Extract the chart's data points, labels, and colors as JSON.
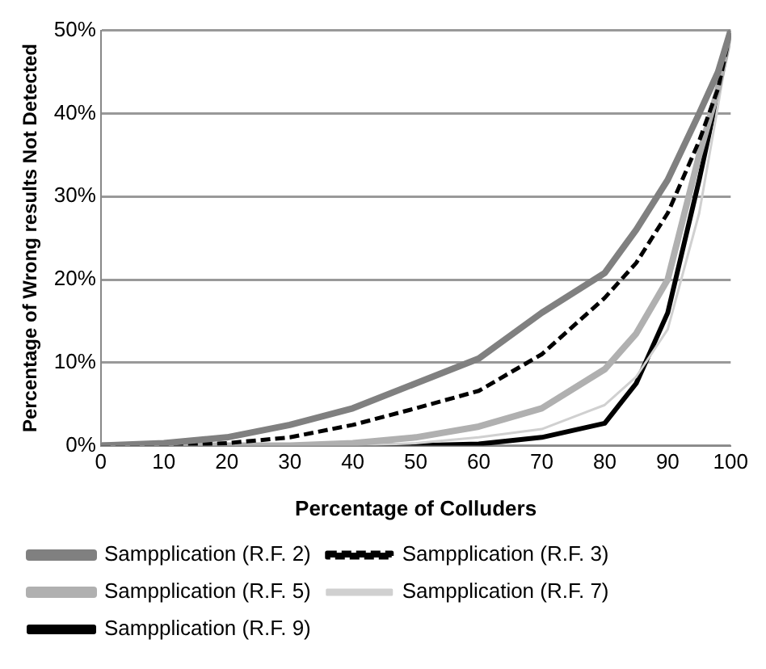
{
  "chart_data": {
    "type": "line",
    "xlabel": "Percentage of Colluders",
    "ylabel": "Percentage of Wrong results Not Detected",
    "x": [
      0,
      10,
      20,
      30,
      40,
      50,
      60,
      70,
      80,
      85,
      90,
      95,
      98,
      100
    ],
    "xlim": [
      0,
      100
    ],
    "xticks": [
      0,
      10,
      20,
      30,
      40,
      50,
      60,
      70,
      80,
      90,
      100
    ],
    "ylim": [
      0,
      50
    ],
    "yticks": [
      {
        "value": 0,
        "label": "0%"
      },
      {
        "value": 10,
        "label": "10%"
      },
      {
        "value": 20,
        "label": "20%"
      },
      {
        "value": 30,
        "label": "30%"
      },
      {
        "value": 40,
        "label": "40%"
      },
      {
        "value": 50,
        "label": "50%"
      }
    ],
    "grid": "y",
    "legend": "bottom",
    "marker": "none",
    "series": [
      {
        "name": "Sampplication (R.F. 2)",
        "color": "#808080",
        "line_style": "solid",
        "values": [
          0,
          0.3,
          1,
          2.5,
          4.5,
          7.5,
          10.5,
          16,
          20.8,
          26,
          32,
          40,
          45,
          50
        ]
      },
      {
        "name": "Sampplication (R.F. 3)",
        "color": "#000000",
        "line_style": "dashed",
        "values": [
          0,
          0,
          0.3,
          1,
          2.5,
          4.5,
          6.6,
          11,
          17.8,
          22,
          28,
          36.7,
          43,
          50
        ]
      },
      {
        "name": "Sampplication (R.F. 5)",
        "color": "#b0b0b0",
        "line_style": "solid",
        "values": [
          0,
          0,
          0,
          0,
          0.3,
          1,
          2.3,
          4.5,
          9.2,
          13.5,
          20,
          35,
          43,
          50
        ]
      },
      {
        "name": "Sampplication (R.F. 7)",
        "color": "#d0d0d0",
        "line_style": "solid",
        "values": [
          0,
          0,
          0,
          0,
          0,
          0.3,
          1,
          2,
          4.9,
          8.3,
          14,
          28,
          41,
          50
        ]
      },
      {
        "name": "Sampplication (R.F. 9)",
        "color": "#000000",
        "line_style": "solid",
        "values": [
          0,
          0,
          0,
          0,
          0,
          0,
          0.2,
          1,
          2.7,
          7.5,
          16,
          32,
          42.6,
          50
        ]
      }
    ]
  }
}
